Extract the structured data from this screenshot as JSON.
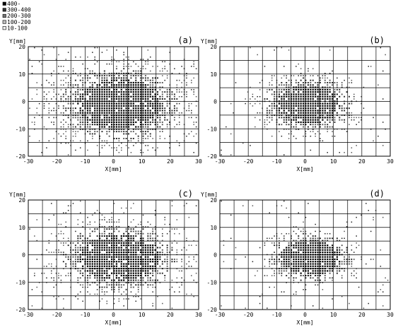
{
  "legend": {
    "title": "400-",
    "entries": [
      "300-400",
      "200-300",
      "100-200",
      "10-100"
    ],
    "colors": [
      "#000000",
      "#333333",
      "#777777",
      "#bbbbbb",
      "#eeeeee"
    ]
  },
  "chart_data": [
    {
      "type": "heatmap",
      "panel_label": "(a)",
      "xlabel": "X[mm]",
      "ylabel": "Y[mm]",
      "xlim": [
        -30,
        30
      ],
      "ylim": [
        -20,
        20
      ],
      "xticks": [
        -30,
        -20,
        -10,
        0,
        10,
        20,
        30
      ],
      "yticks": [
        -20,
        -10,
        0,
        10,
        20
      ],
      "grid": true,
      "density": {
        "cx": 2,
        "cy": -1,
        "rx": 21,
        "ry": 13,
        "edge": 4,
        "noise": 0.35
      }
    },
    {
      "type": "heatmap",
      "panel_label": "(b)",
      "xlabel": "X[mm]",
      "ylabel": "Y[mm]",
      "xlim": [
        -30,
        30
      ],
      "ylim": [
        -20,
        20
      ],
      "xticks": [
        -30,
        -20,
        -10,
        0,
        10,
        20,
        30
      ],
      "yticks": [
        -20,
        -10,
        0,
        10,
        20
      ],
      "grid": true,
      "density": {
        "cx": 1,
        "cy": -1,
        "rx": 16,
        "ry": 10,
        "edge": 6,
        "noise": 0.2
      }
    },
    {
      "type": "heatmap",
      "panel_label": "(c)",
      "xlabel": "X[mm]",
      "ylabel": "Y[mm]",
      "xlim": [
        -30,
        30
      ],
      "ylim": [
        -20,
        20
      ],
      "xticks": [
        -30,
        -20,
        -10,
        0,
        10,
        20,
        30
      ],
      "yticks": [
        -20,
        -10,
        0,
        10,
        20
      ],
      "grid": true,
      "density": {
        "cx": 2,
        "cy": -1,
        "rx": 20,
        "ry": 12,
        "edge": 5,
        "noise": 0.35
      }
    },
    {
      "type": "heatmap",
      "panel_label": "(d)",
      "xlabel": "X[mm]",
      "ylabel": "Y[mm]",
      "xlim": [
        -30,
        30
      ],
      "ylim": [
        -20,
        20
      ],
      "xticks": [
        -30,
        -20,
        -10,
        0,
        10,
        20,
        30
      ],
      "yticks": [
        -20,
        -10,
        0,
        10,
        20
      ],
      "grid": true,
      "density": {
        "cx": 2,
        "cy": -1,
        "rx": 15,
        "ry": 9,
        "edge": 7,
        "noise": 0.25
      }
    }
  ]
}
